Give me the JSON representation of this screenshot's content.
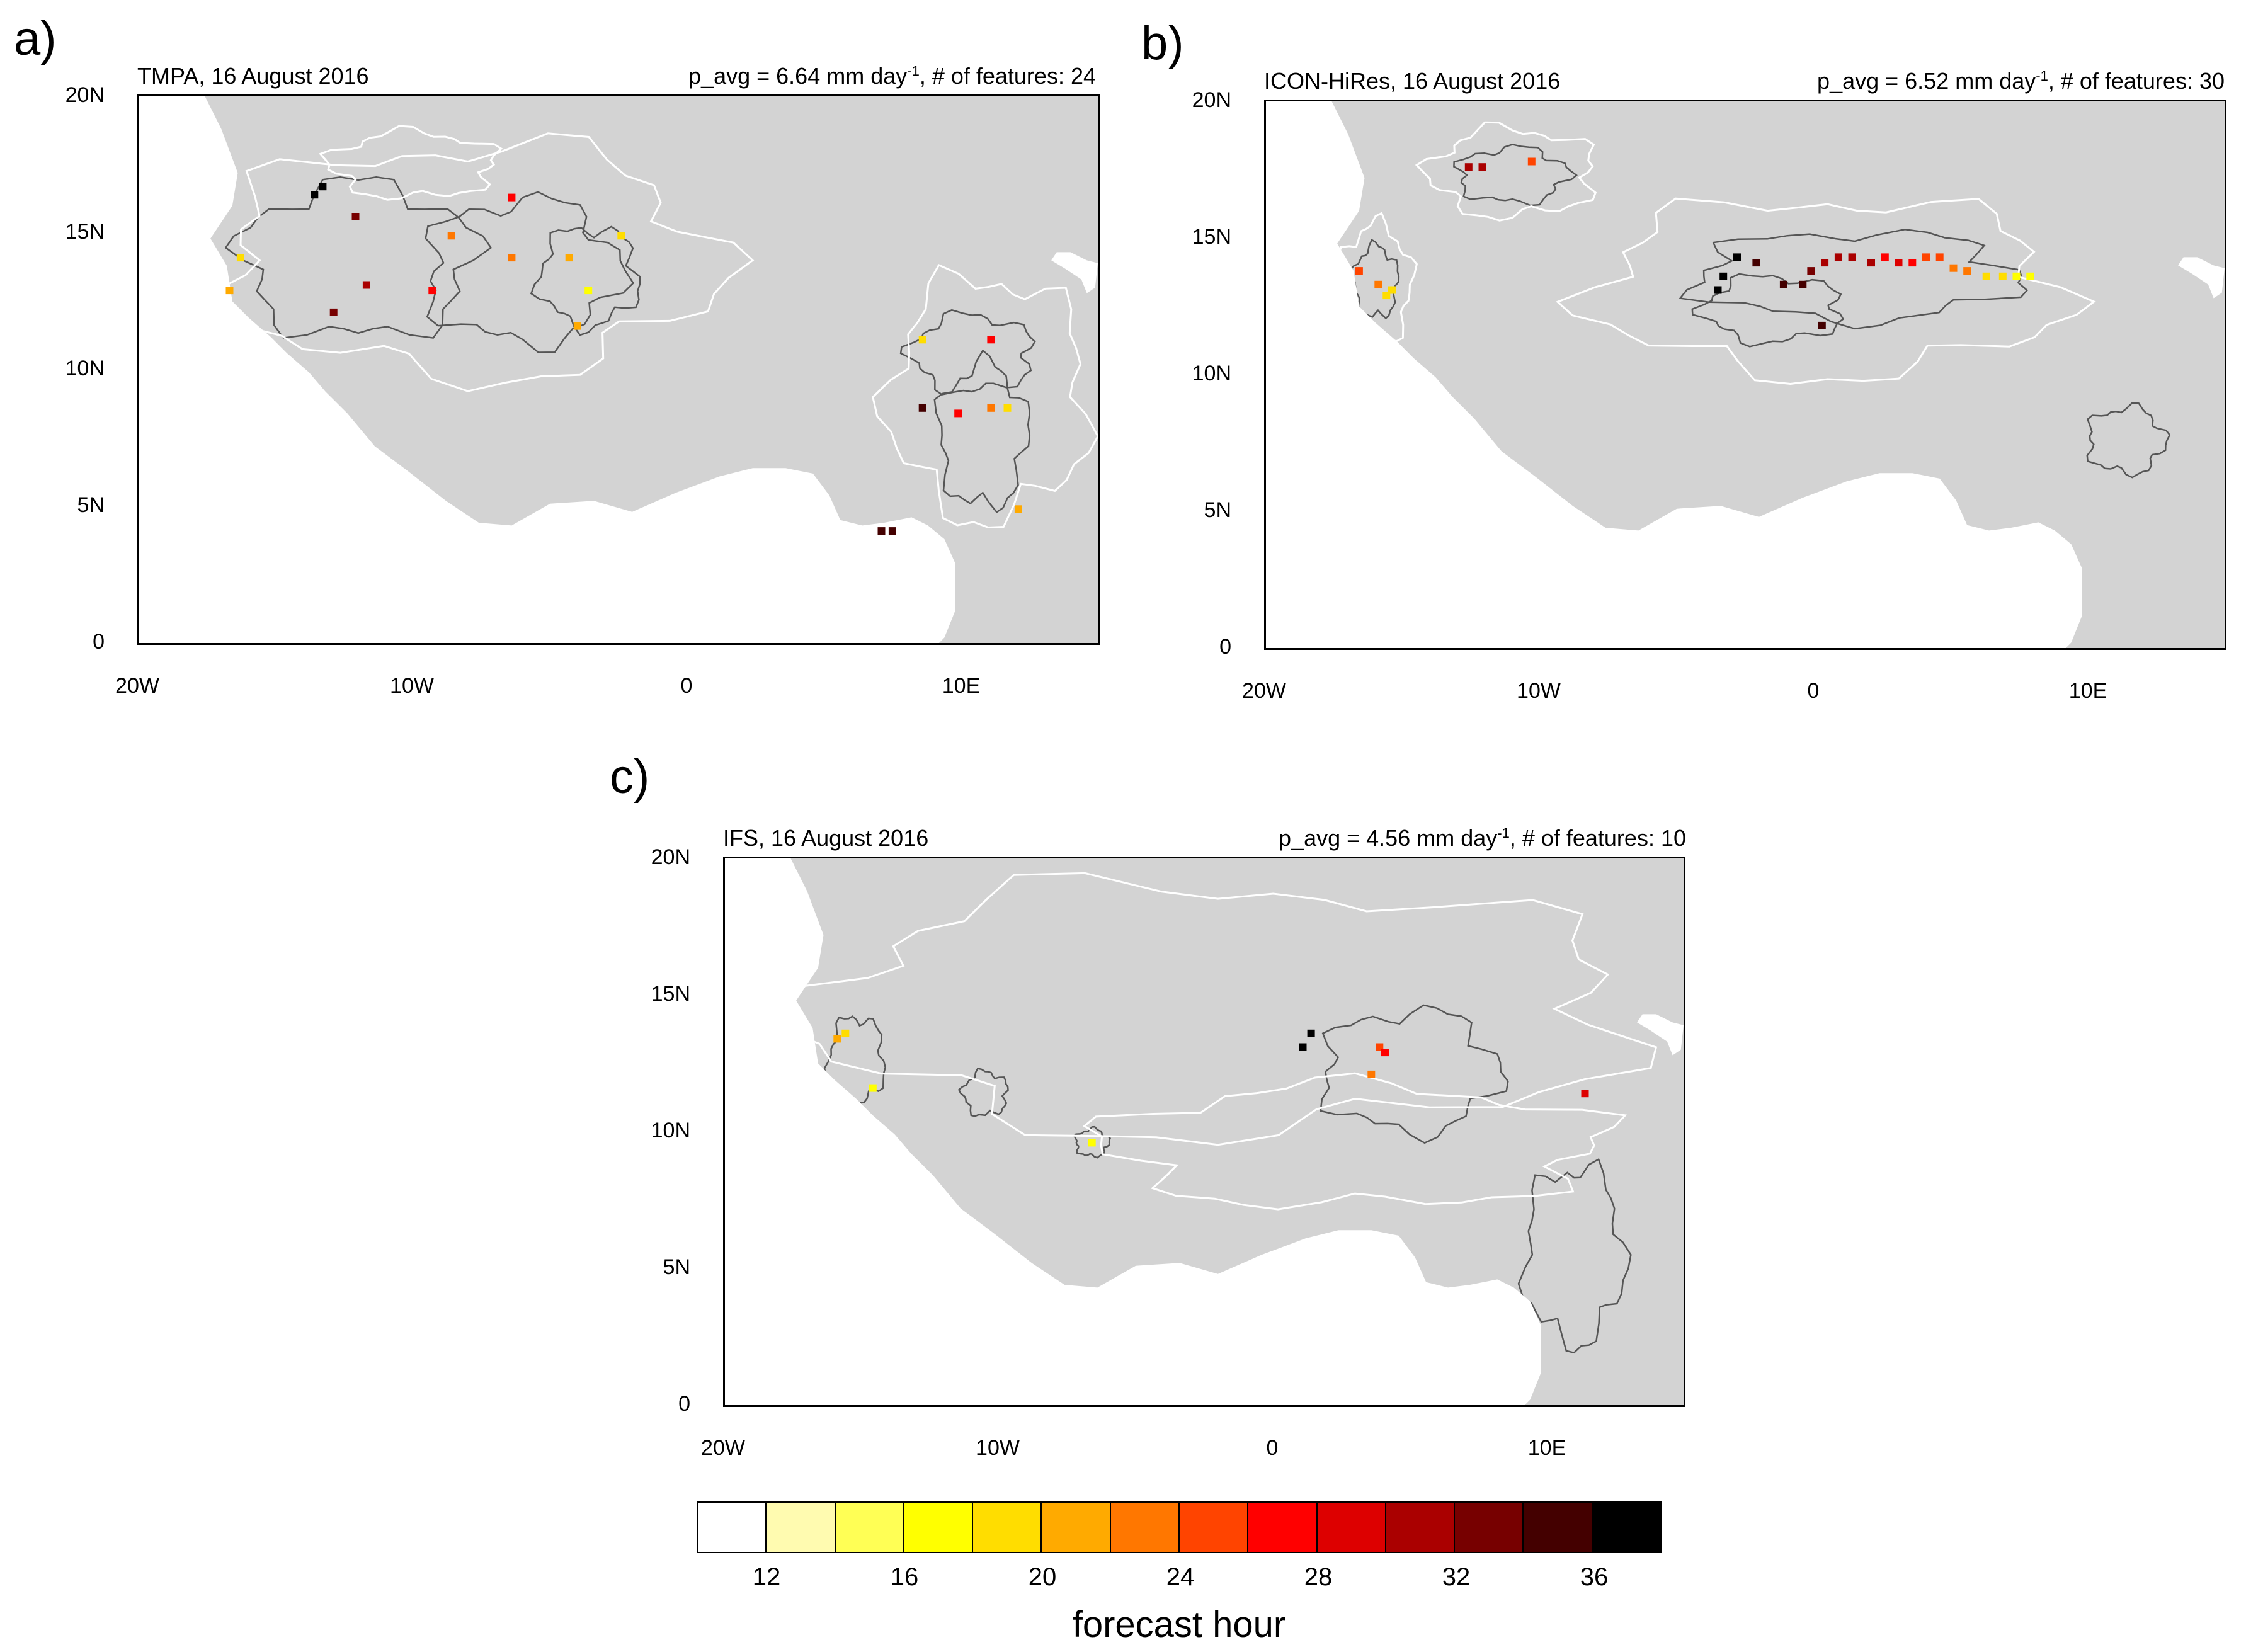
{
  "panels": [
    {
      "letter": "a)",
      "title": "TMPA, 16 August 2016",
      "stats_prefix": "p_avg = 6.64 mm day",
      "stats_sup": "-1",
      "stats_suffix": ", # of features: 24",
      "features": [
        {
          "lon": -13.6,
          "lat": 16.4,
          "hour": 36
        },
        {
          "lon": -13.3,
          "lat": 16.7,
          "hour": 33
        },
        {
          "lon": -12.1,
          "lat": 15.6,
          "hour": 30
        },
        {
          "lon": -11.7,
          "lat": 13.1,
          "hour": 27
        },
        {
          "lon": -12.9,
          "lat": 12.1,
          "hour": 30
        },
        {
          "lon": -16.7,
          "lat": 12.9,
          "hour": 18
        },
        {
          "lon": -16.3,
          "lat": 14.1,
          "hour": 16
        },
        {
          "lon": -9.3,
          "lat": 12.9,
          "hour": 24
        },
        {
          "lon": -8.6,
          "lat": 14.9,
          "hour": 20
        },
        {
          "lon": -6.4,
          "lat": 16.3,
          "hour": 24
        },
        {
          "lon": -6.4,
          "lat": 14.1,
          "hour": 20
        },
        {
          "lon": -4.3,
          "lat": 14.1,
          "hour": 18
        },
        {
          "lon": -4.0,
          "lat": 11.6,
          "hour": 18
        },
        {
          "lon": -3.6,
          "lat": 12.9,
          "hour": 14
        },
        {
          "lon": -2.4,
          "lat": 14.9,
          "hour": 16
        },
        {
          "lon": 8.6,
          "lat": 11.1,
          "hour": 16
        },
        {
          "lon": 11.1,
          "lat": 11.1,
          "hour": 24
        },
        {
          "lon": 8.6,
          "lat": 8.6,
          "hour": 32
        },
        {
          "lon": 9.9,
          "lat": 8.4,
          "hour": 24
        },
        {
          "lon": 11.1,
          "lat": 8.6,
          "hour": 20
        },
        {
          "lon": 11.7,
          "lat": 8.6,
          "hour": 16
        },
        {
          "lon": 12.1,
          "lat": 4.9,
          "hour": 18
        },
        {
          "lon": 7.1,
          "lat": 4.1,
          "hour": 32
        },
        {
          "lon": 7.5,
          "lat": 4.1,
          "hour": 32
        }
      ]
    },
    {
      "letter": "b)",
      "title": "ICON-HiRes, 16 August 2016",
      "stats_prefix": "p_avg = 6.52 mm day",
      "stats_sup": "-1",
      "stats_suffix": ", # of features: 30",
      "features": [
        {
          "lon": -12.6,
          "lat": 17.6,
          "hour": 28
        },
        {
          "lon": -12.1,
          "lat": 17.6,
          "hour": 28
        },
        {
          "lon": -10.3,
          "lat": 17.8,
          "hour": 22
        },
        {
          "lon": -16.6,
          "lat": 13.8,
          "hour": 22
        },
        {
          "lon": -15.9,
          "lat": 13.3,
          "hour": 20
        },
        {
          "lon": -15.6,
          "lat": 12.9,
          "hour": 16
        },
        {
          "lon": -15.4,
          "lat": 13.1,
          "hour": 16
        },
        {
          "lon": -3.5,
          "lat": 13.1,
          "hour": 36
        },
        {
          "lon": -3.3,
          "lat": 13.6,
          "hour": 34
        },
        {
          "lon": -2.8,
          "lat": 14.3,
          "hour": 34
        },
        {
          "lon": -2.1,
          "lat": 14.1,
          "hour": 32
        },
        {
          "lon": -1.1,
          "lat": 13.3,
          "hour": 32
        },
        {
          "lon": -0.4,
          "lat": 13.3,
          "hour": 32
        },
        {
          "lon": -0.1,
          "lat": 13.8,
          "hour": 30
        },
        {
          "lon": 0.4,
          "lat": 14.1,
          "hour": 28
        },
        {
          "lon": 0.3,
          "lat": 11.8,
          "hour": 32
        },
        {
          "lon": 0.9,
          "lat": 14.3,
          "hour": 28
        },
        {
          "lon": 1.4,
          "lat": 14.3,
          "hour": 28
        },
        {
          "lon": 2.1,
          "lat": 14.1,
          "hour": 28
        },
        {
          "lon": 2.6,
          "lat": 14.3,
          "hour": 24
        },
        {
          "lon": 3.1,
          "lat": 14.1,
          "hour": 26
        },
        {
          "lon": 3.6,
          "lat": 14.1,
          "hour": 24
        },
        {
          "lon": 4.1,
          "lat": 14.3,
          "hour": 22
        },
        {
          "lon": 4.6,
          "lat": 14.3,
          "hour": 22
        },
        {
          "lon": 5.1,
          "lat": 13.9,
          "hour": 20
        },
        {
          "lon": 5.6,
          "lat": 13.8,
          "hour": 20
        },
        {
          "lon": 6.3,
          "lat": 13.6,
          "hour": 16
        },
        {
          "lon": 6.9,
          "lat": 13.6,
          "hour": 16
        },
        {
          "lon": 7.4,
          "lat": 13.6,
          "hour": 14
        },
        {
          "lon": 7.9,
          "lat": 13.6,
          "hour": 14
        }
      ]
    },
    {
      "letter": "c)",
      "title": "IFS, 16 August 2016",
      "stats_prefix": "p_avg = 4.56 mm day",
      "stats_sup": "-1",
      "stats_suffix": ", # of features: 10",
      "features": [
        {
          "lon": -15.6,
          "lat": 13.6,
          "hour": 16
        },
        {
          "lon": -15.9,
          "lat": 13.4,
          "hour": 18
        },
        {
          "lon": -14.6,
          "lat": 11.6,
          "hour": 14
        },
        {
          "lon": -6.6,
          "lat": 9.6,
          "hour": 14
        },
        {
          "lon": 1.4,
          "lat": 13.6,
          "hour": 36
        },
        {
          "lon": 1.1,
          "lat": 13.1,
          "hour": 36
        },
        {
          "lon": 3.6,
          "lat": 12.1,
          "hour": 20
        },
        {
          "lon": 3.9,
          "lat": 13.1,
          "hour": 22
        },
        {
          "lon": 4.1,
          "lat": 12.9,
          "hour": 24
        },
        {
          "lon": 11.4,
          "lat": 11.4,
          "hour": 26
        }
      ]
    }
  ],
  "map_axes": {
    "lon_range": [
      -20,
      15
    ],
    "lat_range": [
      0,
      20
    ],
    "lat_ticks": [
      "20N",
      "15N",
      "10N",
      "5N",
      "0"
    ],
    "lon_ticks": [
      "20W",
      "10W",
      "0",
      "10E"
    ],
    "land_color": "#d3d3d3",
    "ocean_color": "#ffffff",
    "contour_dark": "#555555",
    "contour_light": "#ffffff"
  },
  "colorbar": {
    "title": "forecast hour",
    "labels": [
      "12",
      "16",
      "20",
      "24",
      "28",
      "32",
      "36"
    ],
    "colors": [
      "#ffffff",
      "#fffbb0",
      "#ffff55",
      "#ffff00",
      "#ffdd00",
      "#ffaa00",
      "#ff7700",
      "#ff4400",
      "#ff0000",
      "#dd0000",
      "#aa0000",
      "#770000",
      "#440000",
      "#000000"
    ],
    "hour_min": 10,
    "hour_step": 2
  }
}
